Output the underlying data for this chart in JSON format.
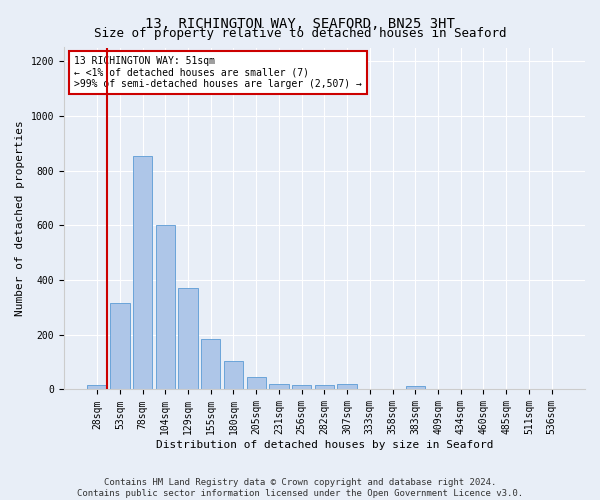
{
  "title": "13, RICHINGTON WAY, SEAFORD, BN25 3HT",
  "subtitle": "Size of property relative to detached houses in Seaford",
  "xlabel": "Distribution of detached houses by size in Seaford",
  "ylabel": "Number of detached properties",
  "footer_line1": "Contains HM Land Registry data © Crown copyright and database right 2024.",
  "footer_line2": "Contains public sector information licensed under the Open Government Licence v3.0.",
  "annotation_title": "13 RICHINGTON WAY: 51sqm",
  "annotation_line2": "← <1% of detached houses are smaller (7)",
  "annotation_line3": ">99% of semi-detached houses are larger (2,507) →",
  "bar_labels": [
    "28sqm",
    "53sqm",
    "78sqm",
    "104sqm",
    "129sqm",
    "155sqm",
    "180sqm",
    "205sqm",
    "231sqm",
    "256sqm",
    "282sqm",
    "307sqm",
    "333sqm",
    "358sqm",
    "383sqm",
    "409sqm",
    "434sqm",
    "460sqm",
    "485sqm",
    "511sqm",
    "536sqm"
  ],
  "bar_values": [
    15,
    315,
    855,
    600,
    370,
    185,
    105,
    45,
    20,
    18,
    18,
    20,
    0,
    0,
    12,
    0,
    0,
    0,
    0,
    0,
    0
  ],
  "bar_color": "#aec6e8",
  "bar_edge_color": "#5b9bd5",
  "highlight_color": "#cc0000",
  "annotation_box_color": "#cc0000",
  "ylim": [
    0,
    1250
  ],
  "yticks": [
    0,
    200,
    400,
    600,
    800,
    1000,
    1200
  ],
  "bg_color": "#e8eef7",
  "grid_color": "#ffffff",
  "title_fontsize": 10,
  "subtitle_fontsize": 9,
  "axis_label_fontsize": 8,
  "tick_fontsize": 7,
  "footer_fontsize": 6.5,
  "annotation_fontsize": 7
}
